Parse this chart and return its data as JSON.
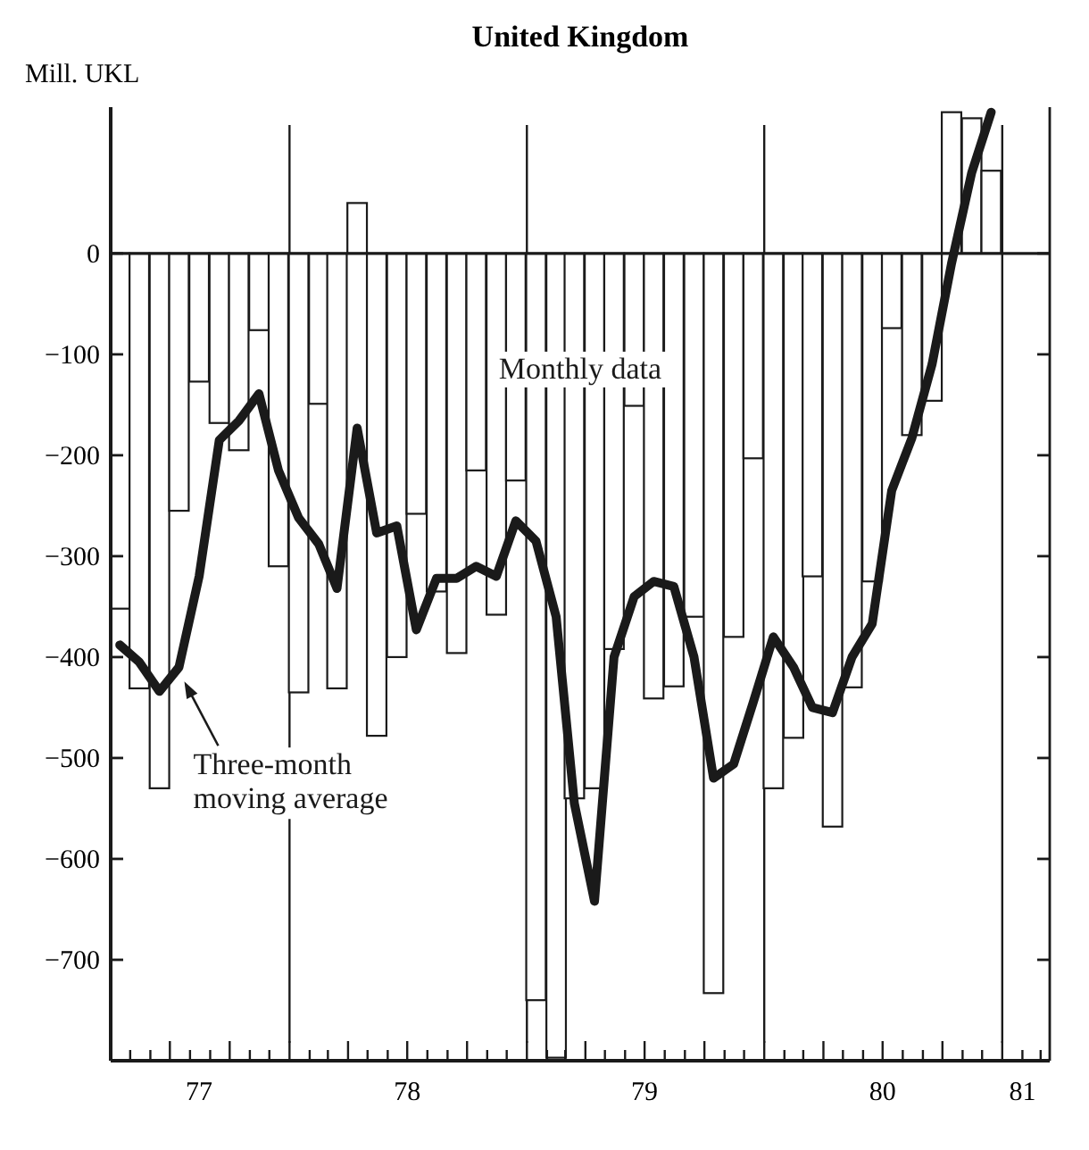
{
  "chart_data": {
    "type": "bar",
    "title": "United Kingdom",
    "ylabel": "Mill. UKL",
    "x": [
      "1977-04-15",
      "1977-05-15",
      "1977-06-15",
      "1977-07-15",
      "1977-08-15",
      "1977-09-15",
      "1977-10-15",
      "1977-11-15",
      "1977-12-15",
      "1978-01-15",
      "1978-02-15",
      "1978-03-15",
      "1978-04-15",
      "1978-05-15",
      "1978-06-15",
      "1978-07-15",
      "1978-08-15",
      "1978-09-15",
      "1978-10-15",
      "1978-11-15",
      "1978-12-15",
      "1979-01-15",
      "1979-02-15",
      "1979-03-15",
      "1979-04-15",
      "1979-05-15",
      "1979-06-15",
      "1979-07-15",
      "1979-08-15",
      "1979-09-15",
      "1979-10-15",
      "1979-11-15",
      "1979-12-15",
      "1980-01-15",
      "1980-02-15",
      "1980-03-15",
      "1980-04-15",
      "1980-05-15",
      "1980-06-15",
      "1980-07-15",
      "1980-08-15",
      "1980-09-15",
      "1980-10-15",
      "1980-11-15",
      "1980-12-15"
    ],
    "series": [
      {
        "name": "Monthly data",
        "color": "#ffffff",
        "values": [
          -352,
          -431,
          -530,
          -255,
          -127,
          -168,
          -195,
          -76,
          -310,
          -435,
          -149,
          -431,
          50,
          -478,
          -400,
          -258,
          -335,
          -396,
          -215,
          -358,
          -225,
          -740,
          -797,
          -540,
          -530,
          -392,
          -151,
          -441,
          -429,
          -360,
          -733,
          -380,
          -203,
          -530,
          -480,
          -320,
          -568,
          -430,
          -325,
          -74,
          -180,
          -146,
          140,
          134,
          82
        ]
      },
      {
        "name": "Three-month moving average",
        "type": "line",
        "color": "#1a1a1a",
        "values": [
          -388,
          -405,
          -434,
          -410,
          -320,
          -185,
          -166,
          -139,
          -215,
          -262,
          -288,
          -332,
          -173,
          -277,
          -270,
          -373,
          -322,
          -322,
          -310,
          -320,
          -265,
          -285,
          -360,
          -545,
          -642,
          -400,
          -340,
          -325,
          -330,
          -400,
          -520,
          -506,
          -445,
          -380,
          -410,
          -450,
          -455,
          -400,
          -367,
          -235,
          -183,
          -110,
          -10,
          80,
          140
        ]
      }
    ],
    "xlim": [
      "1977-04",
      "1981-03-15"
    ],
    "xticks": [
      {
        "value": "1977-08-15",
        "label": "77"
      },
      {
        "value": "1978-07-01",
        "label": "78"
      },
      {
        "value": "1979-07-01",
        "label": "79"
      },
      {
        "value": "1980-07-01",
        "label": "80"
      },
      {
        "value": "1981-02-01",
        "label": "81"
      },
      {
        "value": "1977-05",
        "label": null
      },
      {
        "value": "1977-06",
        "label": null
      },
      {
        "value": "1977-07",
        "label": null
      },
      {
        "value": "1977-08",
        "label": null
      },
      {
        "value": "1977-09",
        "label": null
      },
      {
        "value": "1977-10",
        "label": null
      },
      {
        "value": "1977-11",
        "label": null
      },
      {
        "value": "1977-12",
        "label": null
      },
      {
        "value": "1978-01",
        "label": null
      },
      {
        "value": "1978-02",
        "label": null
      },
      {
        "value": "1978-03",
        "label": null
      },
      {
        "value": "1978-04",
        "label": null
      },
      {
        "value": "1978-05",
        "label": null
      },
      {
        "value": "1978-06",
        "label": null
      },
      {
        "value": "1978-07",
        "label": null
      },
      {
        "value": "1978-08",
        "label": null
      },
      {
        "value": "1978-09",
        "label": null
      },
      {
        "value": "1978-10",
        "label": null
      },
      {
        "value": "1978-11",
        "label": null
      },
      {
        "value": "1978-12",
        "label": null
      },
      {
        "value": "1979-01",
        "label": null
      },
      {
        "value": "1979-02",
        "label": null
      },
      {
        "value": "1979-03",
        "label": null
      },
      {
        "value": "1979-04",
        "label": null
      },
      {
        "value": "1979-05",
        "label": null
      },
      {
        "value": "1979-06",
        "label": null
      },
      {
        "value": "1979-07",
        "label": null
      },
      {
        "value": "1979-08",
        "label": null
      },
      {
        "value": "1979-09",
        "label": null
      },
      {
        "value": "1979-10",
        "label": null
      },
      {
        "value": "1979-11",
        "label": null
      },
      {
        "value": "1979-12",
        "label": null
      },
      {
        "value": "1980-01",
        "label": null
      },
      {
        "value": "1980-02",
        "label": null
      },
      {
        "value": "1980-03",
        "label": null
      },
      {
        "value": "1980-04",
        "label": null
      },
      {
        "value": "1980-05",
        "label": null
      },
      {
        "value": "1980-06",
        "label": null
      },
      {
        "value": "1980-07",
        "label": null
      },
      {
        "value": "1980-08",
        "label": null
      },
      {
        "value": "1980-09",
        "label": null
      },
      {
        "value": "1980-10",
        "label": null
      },
      {
        "value": "1980-11",
        "label": null
      },
      {
        "value": "1980-12",
        "label": null
      },
      {
        "value": "1981-01",
        "label": null
      },
      {
        "value": "1981-02",
        "label": null
      },
      {
        "value": "1981-03",
        "label": null
      }
    ],
    "ylim": [
      -800,
      145
    ],
    "yticks": [
      0,
      -100,
      -200,
      -300,
      -400,
      -500,
      -600,
      -700
    ],
    "ref_lines": [
      {
        "axis": "x",
        "value": "1978-01"
      },
      {
        "axis": "x",
        "value": "1979-01"
      },
      {
        "axis": "x",
        "value": "1980-01"
      },
      {
        "axis": "x",
        "value": "1981-01"
      }
    ]
  }
}
